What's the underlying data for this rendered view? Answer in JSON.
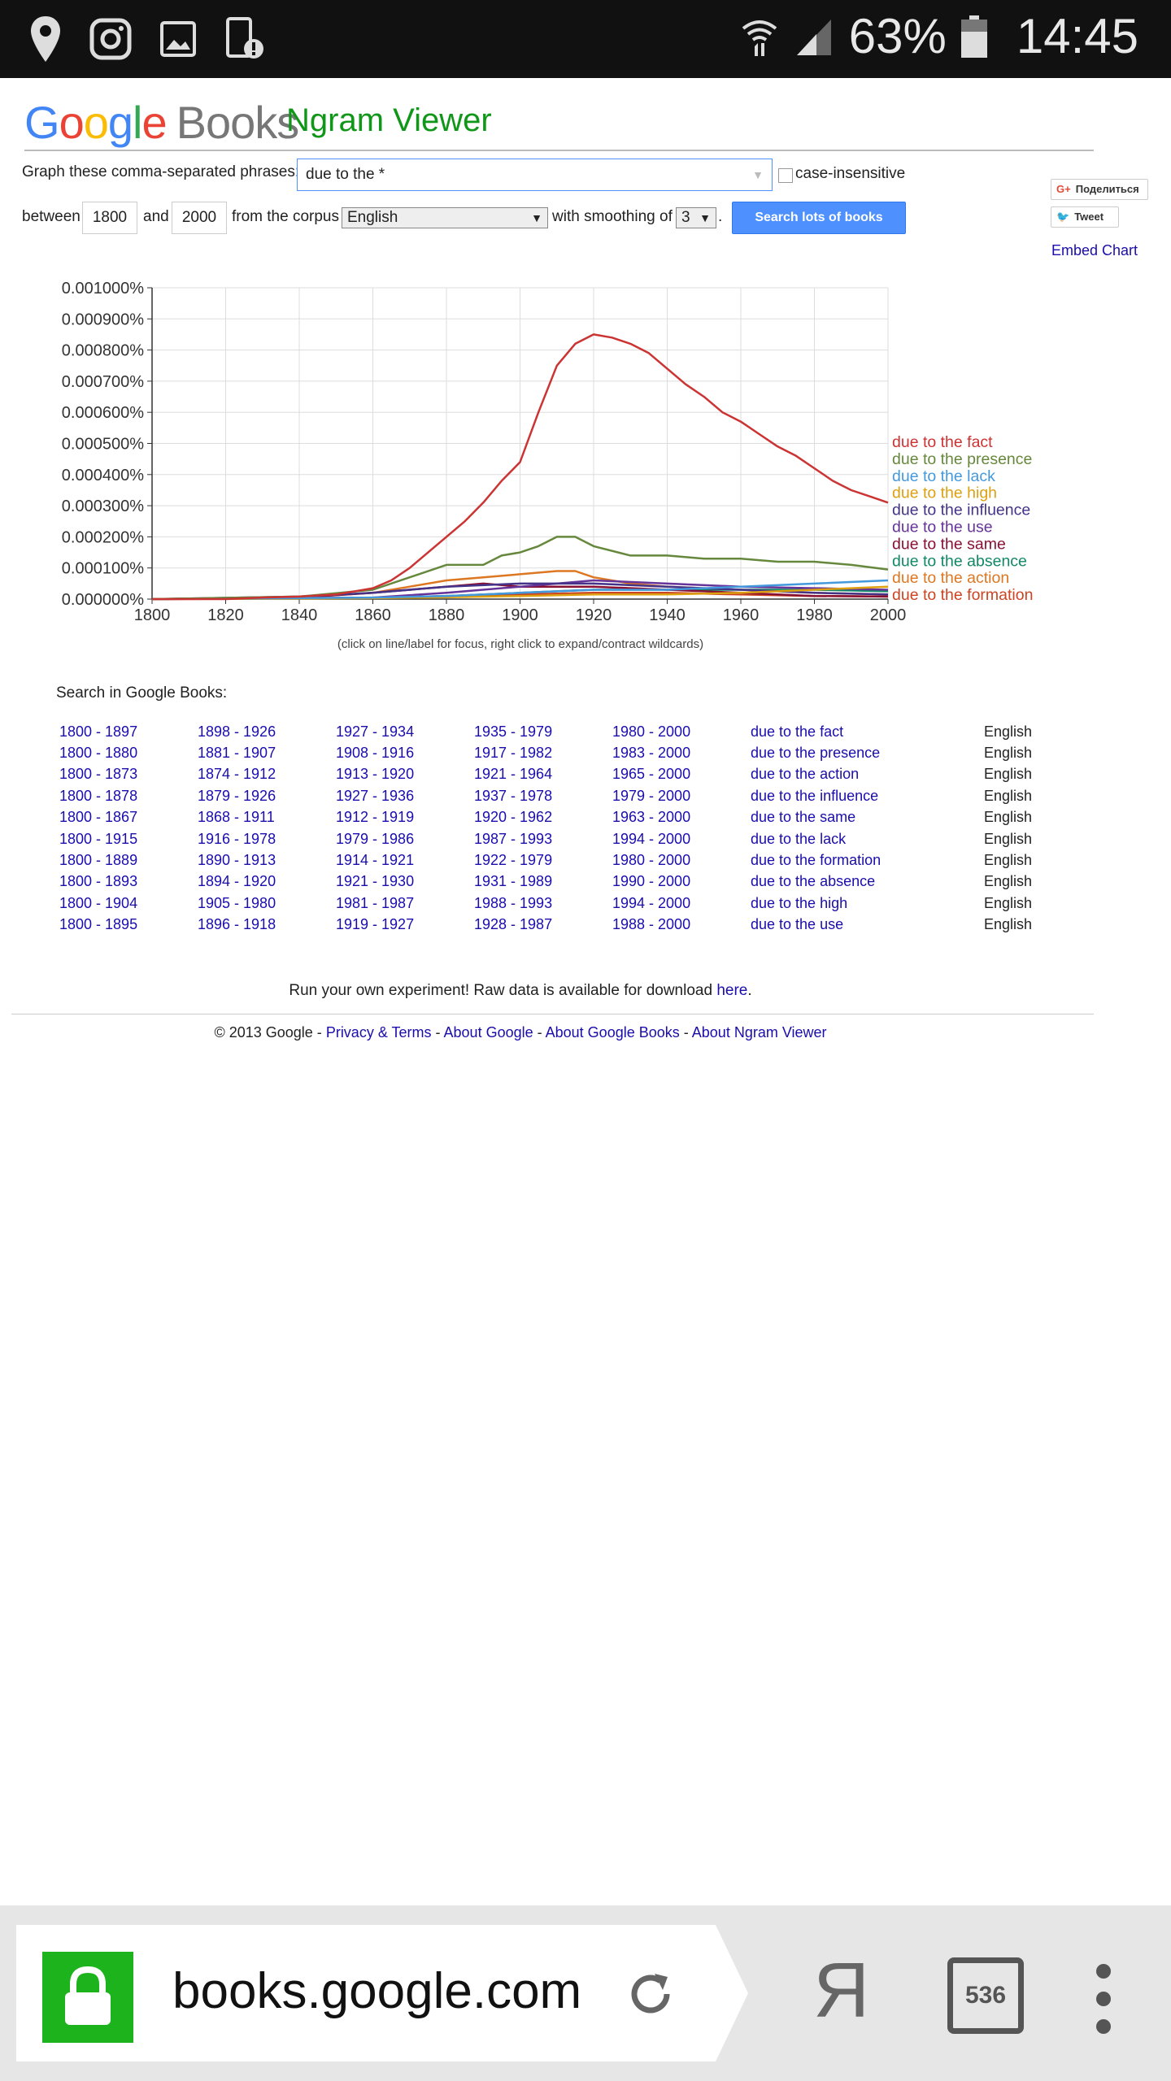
{
  "status_bar": {
    "battery": "63%",
    "time": "14:45"
  },
  "header": {
    "logo": {
      "g1": "G",
      "o1": "o",
      "o2": "o",
      "g2": "g",
      "l": "l",
      "e": "e",
      "books": "Books"
    },
    "title": "Ngram Viewer"
  },
  "form": {
    "phrases_label": "Graph these comma-separated phrases:",
    "phrases_value": "due to the *",
    "case_insensitive_label": "case-insensitive",
    "between_label": "between",
    "start_year": "1800",
    "and_label": "and",
    "end_year": "2000",
    "corpus_label": "from the corpus",
    "corpus_value": "English",
    "smoothing_label": "with smoothing of",
    "smoothing_value": "3",
    "period": ".",
    "search_button": "Search lots of books",
    "share_label": "Поделиться",
    "tweet_label": "Tweet",
    "embed_label": "Embed Chart"
  },
  "chart_data": {
    "type": "line",
    "xlim": [
      1800,
      2000
    ],
    "ylim": [
      0,
      0.001
    ],
    "x_ticks": [
      "1800",
      "1820",
      "1840",
      "1860",
      "1880",
      "1900",
      "1920",
      "1940",
      "1960",
      "1980",
      "2000"
    ],
    "y_ticks": [
      "0.000000%",
      "0.000100%",
      "0.000200%",
      "0.000300%",
      "0.000400%",
      "0.000500%",
      "0.000600%",
      "0.000700%",
      "0.000800%",
      "0.000900%",
      "0.001000%"
    ],
    "grid": true,
    "legend_placement": "right",
    "series": [
      {
        "name": "due to the fact",
        "color": "#cc3333",
        "x": [
          1800,
          1820,
          1830,
          1840,
          1850,
          1860,
          1865,
          1870,
          1875,
          1880,
          1885,
          1890,
          1895,
          1900,
          1905,
          1910,
          1915,
          1920,
          1925,
          1930,
          1935,
          1940,
          1945,
          1950,
          1955,
          1960,
          1965,
          1970,
          1975,
          1980,
          1985,
          1990,
          1995,
          2000
        ],
        "y": [
          0,
          0,
          5e-06,
          8e-06,
          1.5e-05,
          3.5e-05,
          6e-05,
          0.0001,
          0.00015,
          0.0002,
          0.00025,
          0.00031,
          0.00038,
          0.00044,
          0.0006,
          0.00075,
          0.00082,
          0.00085,
          0.00084,
          0.00082,
          0.00079,
          0.00074,
          0.00069,
          0.00065,
          0.0006,
          0.00057,
          0.00053,
          0.00049,
          0.00046,
          0.00042,
          0.00038,
          0.00035,
          0.00033,
          0.00031
        ]
      },
      {
        "name": "due to the presence",
        "color": "#66883c",
        "x": [
          1800,
          1840,
          1860,
          1870,
          1880,
          1890,
          1895,
          1900,
          1905,
          1910,
          1915,
          1920,
          1930,
          1940,
          1950,
          1960,
          1970,
          1980,
          1990,
          2000
        ],
        "y": [
          0,
          8e-06,
          3e-05,
          7e-05,
          0.00011,
          0.00011,
          0.00014,
          0.00015,
          0.00017,
          0.0002,
          0.0002,
          0.00017,
          0.00014,
          0.00014,
          0.00013,
          0.00013,
          0.00012,
          0.00012,
          0.00011,
          9.5e-05
        ]
      },
      {
        "name": "due to the lack",
        "color": "#4499dd",
        "x": [
          1800,
          1860,
          1880,
          1900,
          1920,
          1940,
          1960,
          1980,
          2000
        ],
        "y": [
          0,
          5e-06,
          1e-05,
          2e-05,
          3e-05,
          3e-05,
          4e-05,
          5e-05,
          6e-05
        ]
      },
      {
        "name": "due to the high",
        "color": "#dda011",
        "x": [
          1800,
          1860,
          1880,
          1900,
          1920,
          1940,
          1960,
          1980,
          2000
        ],
        "y": [
          0,
          3e-06,
          6e-06,
          1e-05,
          1.5e-05,
          1.5e-05,
          2e-05,
          3e-05,
          4e-05
        ]
      },
      {
        "name": "due to the influence",
        "color": "#443388",
        "x": [
          1800,
          1840,
          1860,
          1880,
          1900,
          1920,
          1940,
          1960,
          1980,
          2000
        ],
        "y": [
          0,
          8e-06,
          2e-05,
          4e-05,
          5e-05,
          5e-05,
          4e-05,
          3e-05,
          2e-05,
          1.5e-05
        ]
      },
      {
        "name": "due to the use",
        "color": "#663399",
        "x": [
          1800,
          1860,
          1880,
          1900,
          1920,
          1940,
          1960,
          1980,
          2000
        ],
        "y": [
          0,
          5e-06,
          2e-05,
          4e-05,
          6e-05,
          5e-05,
          4e-05,
          3.5e-05,
          3e-05
        ]
      },
      {
        "name": "due to the same",
        "color": "#881133",
        "x": [
          1800,
          1840,
          1860,
          1880,
          1890,
          1900,
          1920,
          1940,
          1960,
          1980,
          2000
        ],
        "y": [
          0,
          5e-06,
          2e-05,
          4e-05,
          5e-05,
          4e-05,
          4e-05,
          3e-05,
          2e-05,
          1e-05,
          8e-06
        ]
      },
      {
        "name": "due to the absence",
        "color": "#118866",
        "x": [
          1800,
          1860,
          1880,
          1900,
          1920,
          1940,
          1960,
          1980,
          2000
        ],
        "y": [
          0,
          4e-06,
          1e-05,
          2e-05,
          3e-05,
          3e-05,
          3e-05,
          3e-05,
          2.5e-05
        ]
      },
      {
        "name": "due to the action",
        "color": "#dd7722",
        "x": [
          1800,
          1840,
          1860,
          1870,
          1880,
          1890,
          1900,
          1910,
          1915,
          1920,
          1930,
          1940,
          1950,
          1960,
          1980,
          2000
        ],
        "y": [
          0,
          5e-06,
          2e-05,
          4e-05,
          6e-05,
          7e-05,
          8e-05,
          9e-05,
          9e-05,
          7e-05,
          5e-05,
          4e-05,
          3.5e-05,
          3e-05,
          2e-05,
          1.5e-05
        ]
      },
      {
        "name": "due to the formation",
        "color": "#cc4422",
        "x": [
          1800,
          1860,
          1880,
          1900,
          1920,
          1940,
          1960,
          1980,
          2000
        ],
        "y": [
          0,
          4e-06,
          1e-05,
          1.5e-05,
          2e-05,
          2e-05,
          1.5e-05,
          1e-05,
          8e-06
        ]
      }
    ]
  },
  "chart_note": "(click on line/label for focus, right click to expand/contract wildcards)",
  "results": {
    "title": "Search in Google Books:",
    "rows": [
      {
        "r1": "1800 - 1897",
        "r2": "1898 - 1926",
        "r3": "1927 - 1934",
        "r4": "1935 - 1979",
        "r5": "1980 - 2000",
        "phrase": "due to the fact",
        "lang": "English"
      },
      {
        "r1": "1800 - 1880",
        "r2": "1881 - 1907",
        "r3": "1908 - 1916",
        "r4": "1917 - 1982",
        "r5": "1983 - 2000",
        "phrase": "due to the presence",
        "lang": "English"
      },
      {
        "r1": "1800 - 1873",
        "r2": "1874 - 1912",
        "r3": "1913 - 1920",
        "r4": "1921 - 1964",
        "r5": "1965 - 2000",
        "phrase": "due to the action",
        "lang": "English"
      },
      {
        "r1": "1800 - 1878",
        "r2": "1879 - 1926",
        "r3": "1927 - 1936",
        "r4": "1937 - 1978",
        "r5": "1979 - 2000",
        "phrase": "due to the influence",
        "lang": "English"
      },
      {
        "r1": "1800 - 1867",
        "r2": "1868 - 1911",
        "r3": "1912 - 1919",
        "r4": "1920 - 1962",
        "r5": "1963 - 2000",
        "phrase": "due to the same",
        "lang": "English"
      },
      {
        "r1": "1800 - 1915",
        "r2": "1916 - 1978",
        "r3": "1979 - 1986",
        "r4": "1987 - 1993",
        "r5": "1994 - 2000",
        "phrase": "due to the lack",
        "lang": "English"
      },
      {
        "r1": "1800 - 1889",
        "r2": "1890 - 1913",
        "r3": "1914 - 1921",
        "r4": "1922 - 1979",
        "r5": "1980 - 2000",
        "phrase": "due to the formation",
        "lang": "English"
      },
      {
        "r1": "1800 - 1893",
        "r2": "1894 - 1920",
        "r3": "1921 - 1930",
        "r4": "1931 - 1989",
        "r5": "1990 - 2000",
        "phrase": "due to the absence",
        "lang": "English"
      },
      {
        "r1": "1800 - 1904",
        "r2": "1905 - 1980",
        "r3": "1981 - 1987",
        "r4": "1988 - 1993",
        "r5": "1994 - 2000",
        "phrase": "due to the high",
        "lang": "English"
      },
      {
        "r1": "1800 - 1895",
        "r2": "1896 - 1918",
        "r3": "1919 - 1927",
        "r4": "1928 - 1987",
        "r5": "1988 - 2000",
        "phrase": "due to the use",
        "lang": "English"
      }
    ]
  },
  "raw_data": {
    "text": "Run your own experiment! Raw data is available for download ",
    "link": "here",
    "end": "."
  },
  "footer": {
    "copyright": "© 2013 Google - ",
    "privacy": "Privacy & Terms",
    "sep": " - ",
    "about_google": "About Google",
    "about_books": "About Google Books",
    "about_ngram": "About Ngram Viewer"
  },
  "browser": {
    "url": "books.google.com",
    "yandex": "Я",
    "tabs_count": "536"
  }
}
